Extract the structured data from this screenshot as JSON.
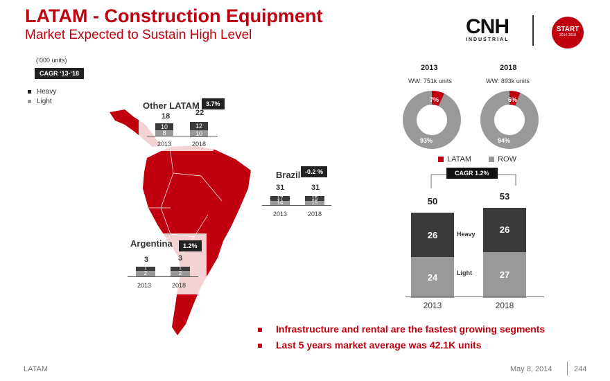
{
  "header": {
    "title": "LATAM - Construction Equipment",
    "subtitle": "Market Expected to Sustain High Level"
  },
  "logo": {
    "main": "CNH",
    "sub": "INDUSTRIAL"
  },
  "start_badge": {
    "label": "START",
    "sub": "2014-2018"
  },
  "units_note": "(’000 units)",
  "cagr_tag": "CAGR ‘13-‘18",
  "legend": {
    "heavy": "Heavy",
    "light": "Light"
  },
  "regions": {
    "other_latam": {
      "title": "Other LATAM",
      "cagr": "3.7%",
      "years": [
        "2013",
        "2018"
      ],
      "totals": [
        "18",
        "22"
      ],
      "heavy": [
        "10",
        "12"
      ],
      "light": [
        "8",
        "10"
      ]
    },
    "brazil": {
      "title": "Brazil",
      "cagr": "-0.2 %",
      "years": [
        "2013",
        "2018"
      ],
      "totals": [
        "31",
        "31"
      ],
      "heavy": [
        "17",
        "15"
      ],
      "light": [
        "14",
        "15"
      ]
    },
    "argentina": {
      "title": "Argentina",
      "cagr": "1.2%",
      "years": [
        "2013",
        "2018"
      ],
      "totals": [
        "3",
        "3"
      ],
      "heavy": [
        "1",
        "1"
      ],
      "light": [
        "2",
        "2"
      ]
    }
  },
  "donuts": [
    {
      "year": "2013",
      "ww_label": "WW: 751k units",
      "latam_pct": "7%",
      "row_pct": "93%",
      "latam_value": 7
    },
    {
      "year": "2018",
      "ww_label": "WW: 893k units",
      "latam_pct": "6%",
      "row_pct": "94%",
      "latam_value": 6
    }
  ],
  "donut_legend": {
    "latam": "LATAM",
    "row": "ROW"
  },
  "colors": {
    "brand_red": "#c0000f",
    "heavy": "#3b3b3b",
    "light": "#999999",
    "row": "#999999"
  },
  "chart_data": {
    "type": "bar",
    "stacked": true,
    "categories": [
      "2013",
      "2018"
    ],
    "series": [
      {
        "name": "Heavy",
        "values": [
          26,
          26
        ]
      },
      {
        "name": "Light",
        "values": [
          24,
          27
        ]
      }
    ],
    "totals": [
      "50",
      "53"
    ],
    "cagr_label": "CAGR  1.2%",
    "ymax": 53
  },
  "bullets": [
    "Infrastructure and rental are the fastest growing segments",
    "Last 5 years market average was 42.1K units"
  ],
  "footer": {
    "left": "LATAM",
    "date": "May 8, 2014",
    "page": "244"
  }
}
